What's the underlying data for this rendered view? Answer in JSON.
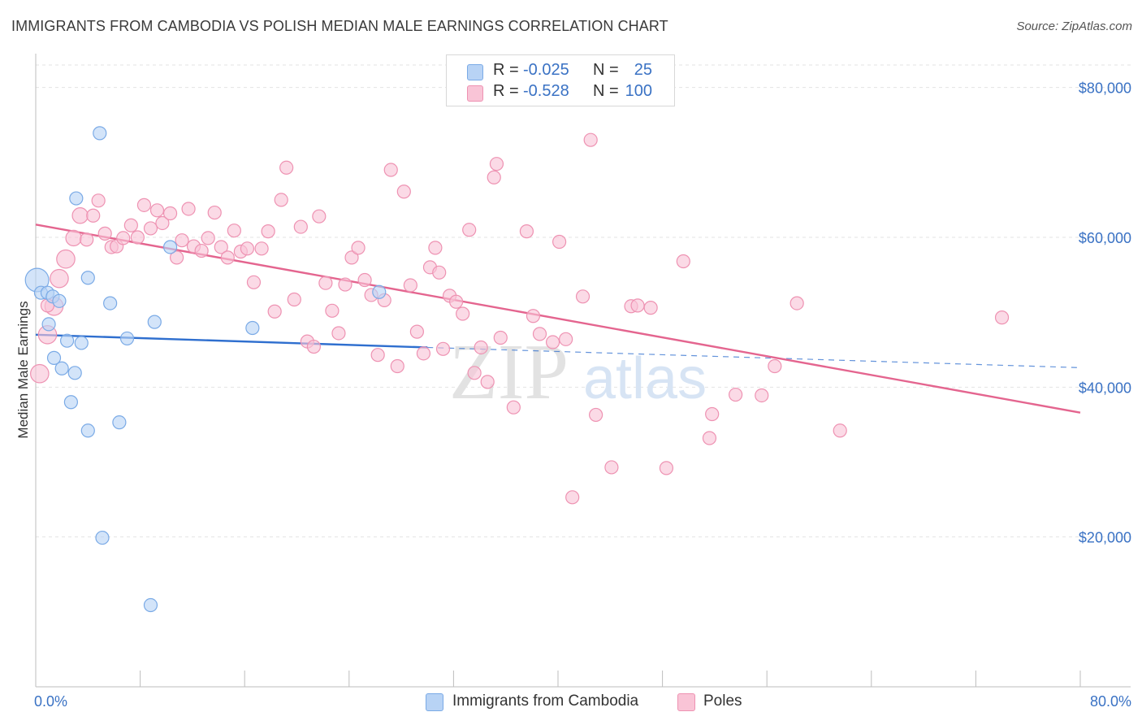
{
  "header": {
    "title": "IMMIGRANTS FROM CAMBODIA VS POLISH MEDIAN MALE EARNINGS CORRELATION CHART",
    "source": "Source: ZipAtlas.com"
  },
  "legend": {
    "rows": [
      {
        "r_label": "R =",
        "r_value": "-0.025",
        "n_label": "N =",
        "n_value": "25"
      },
      {
        "r_label": "R =",
        "r_value": "-0.528",
        "n_label": "N =",
        "n_value": "100"
      }
    ]
  },
  "bottom_legend": {
    "items": [
      {
        "label": "Immigrants from Cambodia"
      },
      {
        "label": "Poles"
      }
    ]
  },
  "watermark": {
    "zip": "ZIP",
    "atlas": "atlas"
  },
  "colors": {
    "cambodia_fill": "#b8d3f5",
    "cambodia_stroke": "#7aaae6",
    "cambodia_line": "#2f6fcf",
    "poles_fill": "#f9c4d6",
    "poles_stroke": "#ee92b2",
    "poles_line": "#e4658f",
    "tick_text": "#3a72c4",
    "grid": "#e3e3e3"
  },
  "chart_data": {
    "type": "scatter",
    "title": "IMMIGRANTS FROM CAMBODIA VS POLISH MEDIAN MALE EARNINGS CORRELATION CHART",
    "xlabel": "",
    "ylabel": "Median Male Earnings",
    "xlim": [
      0,
      80
    ],
    "ylim": [
      0,
      83000
    ],
    "x_tick_labels": [
      "0.0%",
      "80.0%"
    ],
    "y_ticks": [
      20000,
      40000,
      60000,
      80000
    ],
    "y_tick_labels": [
      "$20,000",
      "$40,000",
      "$60,000",
      "$80,000"
    ],
    "grid": true,
    "legend_position": "top-center",
    "series": [
      {
        "name": "Immigrants from Cambodia",
        "r": -0.025,
        "n": 25,
        "trend": {
          "x0": 0,
          "y0": 47000,
          "x1": 30,
          "y1": 45300,
          "dashed_to_x": 80,
          "dashed_y": 42600
        },
        "points": [
          [
            0.1,
            54300,
            18
          ],
          [
            0.4,
            52600,
            10
          ],
          [
            0.9,
            52600,
            10
          ],
          [
            1.0,
            48400,
            10
          ],
          [
            1.3,
            52100,
            10
          ],
          [
            1.4,
            43900,
            10
          ],
          [
            1.8,
            51500,
            10
          ],
          [
            2.0,
            42500,
            10
          ],
          [
            2.4,
            46200,
            10
          ],
          [
            2.7,
            38000,
            10
          ],
          [
            3.1,
            65200,
            10
          ],
          [
            3.0,
            41900,
            10
          ],
          [
            3.5,
            45900,
            10
          ],
          [
            4.0,
            34200,
            10
          ],
          [
            4.0,
            54600,
            10
          ],
          [
            4.9,
            73900,
            10
          ],
          [
            5.1,
            19900,
            10
          ],
          [
            5.7,
            51200,
            10
          ],
          [
            6.4,
            35300,
            10
          ],
          [
            7.0,
            46500,
            10
          ],
          [
            8.8,
            10900,
            10
          ],
          [
            9.1,
            48700,
            10
          ],
          [
            10.3,
            58700,
            10
          ],
          [
            16.6,
            47900,
            10
          ],
          [
            26.3,
            52700,
            10
          ]
        ]
      },
      {
        "name": "Poles",
        "r": -0.528,
        "n": 100,
        "trend": {
          "x0": 0,
          "y0": 61700,
          "x1": 80,
          "y1": 36600
        },
        "points": [
          [
            0.3,
            41800,
            14
          ],
          [
            0.9,
            47000,
            14
          ],
          [
            1.4,
            50800,
            14
          ],
          [
            1.8,
            54500,
            14
          ],
          [
            2.3,
            57100,
            14
          ],
          [
            2.9,
            59900,
            12
          ],
          [
            3.4,
            62900,
            12
          ],
          [
            3.9,
            59700,
            10
          ],
          [
            4.4,
            62900,
            10
          ],
          [
            4.8,
            64900,
            10
          ],
          [
            5.3,
            60500,
            10
          ],
          [
            5.8,
            58700,
            10
          ],
          [
            6.2,
            58800,
            10
          ],
          [
            6.7,
            59900,
            10
          ],
          [
            7.3,
            61600,
            10
          ],
          [
            7.8,
            60000,
            10
          ],
          [
            8.3,
            64300,
            10
          ],
          [
            8.8,
            61200,
            10
          ],
          [
            9.3,
            63600,
            10
          ],
          [
            9.7,
            61900,
            10
          ],
          [
            10.3,
            63200,
            10
          ],
          [
            10.8,
            57300,
            10
          ],
          [
            11.2,
            59600,
            10
          ],
          [
            11.7,
            63800,
            10
          ],
          [
            12.1,
            58800,
            10
          ],
          [
            12.7,
            58200,
            10
          ],
          [
            13.2,
            59900,
            10
          ],
          [
            13.7,
            63300,
            10
          ],
          [
            14.2,
            58700,
            10
          ],
          [
            14.7,
            57300,
            10
          ],
          [
            15.2,
            60900,
            10
          ],
          [
            15.7,
            58100,
            10
          ],
          [
            16.2,
            58500,
            10
          ],
          [
            16.7,
            54000,
            10
          ],
          [
            17.3,
            58500,
            10
          ],
          [
            17.8,
            60800,
            10
          ],
          [
            18.3,
            50100,
            10
          ],
          [
            18.8,
            65000,
            10
          ],
          [
            19.2,
            69300,
            10
          ],
          [
            19.8,
            51700,
            10
          ],
          [
            20.3,
            61400,
            10
          ],
          [
            20.8,
            46100,
            10
          ],
          [
            21.3,
            45400,
            10
          ],
          [
            21.7,
            62800,
            10
          ],
          [
            22.2,
            53900,
            10
          ],
          [
            22.7,
            50200,
            10
          ],
          [
            23.2,
            47200,
            10
          ],
          [
            23.7,
            53700,
            10
          ],
          [
            24.2,
            57300,
            10
          ],
          [
            24.7,
            58600,
            10
          ],
          [
            25.2,
            54300,
            10
          ],
          [
            25.7,
            52300,
            10
          ],
          [
            26.2,
            44300,
            10
          ],
          [
            26.7,
            51600,
            10
          ],
          [
            27.2,
            69000,
            10
          ],
          [
            27.7,
            42800,
            10
          ],
          [
            28.2,
            66100,
            10
          ],
          [
            28.7,
            53600,
            10
          ],
          [
            29.2,
            47400,
            10
          ],
          [
            29.7,
            44500,
            10
          ],
          [
            30.2,
            56000,
            10
          ],
          [
            30.6,
            58600,
            10
          ],
          [
            30.9,
            55300,
            10
          ],
          [
            31.2,
            45100,
            10
          ],
          [
            31.7,
            52200,
            10
          ],
          [
            32.2,
            51400,
            10
          ],
          [
            32.7,
            49800,
            10
          ],
          [
            33.2,
            61000,
            10
          ],
          [
            33.6,
            41900,
            10
          ],
          [
            34.1,
            45300,
            10
          ],
          [
            34.6,
            40700,
            10
          ],
          [
            35.1,
            68000,
            10
          ],
          [
            35.3,
            69800,
            10
          ],
          [
            35.6,
            46600,
            10
          ],
          [
            36.6,
            37300,
            10
          ],
          [
            37.6,
            60800,
            10
          ],
          [
            38.1,
            49500,
            10
          ],
          [
            38.6,
            47100,
            10
          ],
          [
            39.6,
            46000,
            10
          ],
          [
            40.1,
            59400,
            10
          ],
          [
            40.6,
            46400,
            10
          ],
          [
            41.1,
            25300,
            10
          ],
          [
            41.9,
            52100,
            10
          ],
          [
            42.5,
            73000,
            10
          ],
          [
            42.9,
            36300,
            10
          ],
          [
            44.1,
            29300,
            10
          ],
          [
            45.6,
            50800,
            10
          ],
          [
            46.1,
            50900,
            10
          ],
          [
            47.1,
            50600,
            10
          ],
          [
            48.3,
            29200,
            10
          ],
          [
            49.6,
            56800,
            10
          ],
          [
            51.6,
            33200,
            10
          ],
          [
            51.8,
            36400,
            10
          ],
          [
            53.6,
            39000,
            10
          ],
          [
            55.6,
            38900,
            10
          ],
          [
            56.6,
            42800,
            10
          ],
          [
            58.3,
            51200,
            10
          ],
          [
            61.6,
            34200,
            10
          ],
          [
            74.0,
            49300,
            10
          ],
          [
            0.9,
            50900,
            10
          ]
        ]
      }
    ]
  }
}
